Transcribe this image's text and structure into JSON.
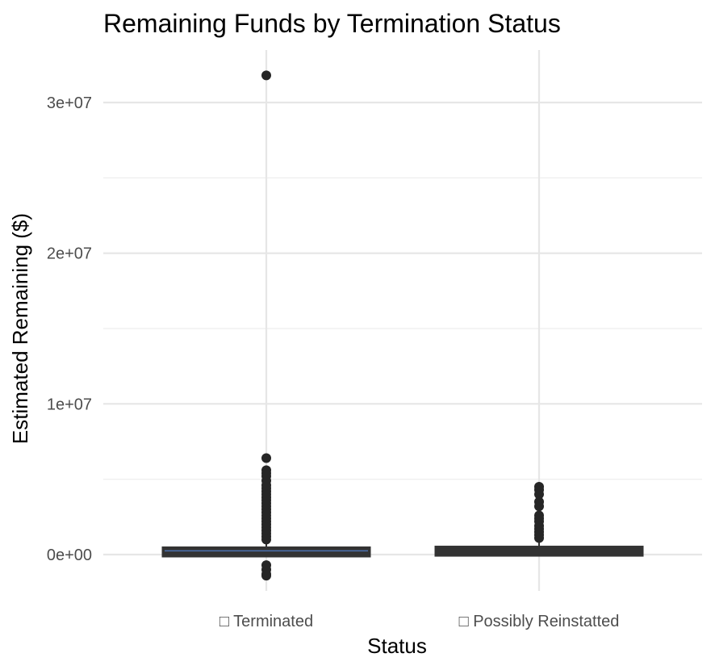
{
  "chart_data": {
    "type": "boxplot",
    "title": "Remaining Funds by Termination Status",
    "xlabel": "Status",
    "ylabel": "Estimated Remaining ($)",
    "categories": [
      "□ Terminated",
      "□ Possibly Reinstatted"
    ],
    "ylim": [
      -2000000,
      32500000
    ],
    "y_major_ticks": [
      0,
      10000000,
      20000000,
      30000000
    ],
    "y_tick_labels": [
      "0e+00",
      "1e+07",
      "2e+07",
      "3e+07"
    ],
    "y_minor_ticks": [
      5000000,
      15000000,
      25000000
    ],
    "grid": true,
    "colors": {
      "box_outline": "#333333",
      "box_fill": "#cfcfcf",
      "median": "#4c72b0",
      "outlier": "#262626",
      "grid": "#e6e6e6"
    },
    "series": [
      {
        "name": "□ Terminated",
        "q1": 0,
        "median": 250000,
        "q3": 350000,
        "whisker_low": -100000,
        "whisker_high": 800000,
        "outliers": [
          31800000,
          6400000,
          5600000,
          5400000,
          5200000,
          4900000,
          4600000,
          4400000,
          4200000,
          4000000,
          3800000,
          3600000,
          3400000,
          3200000,
          3000000,
          2800000,
          2600000,
          2400000,
          2200000,
          2000000,
          1800000,
          1600000,
          1400000,
          1200000,
          1000000,
          -700000,
          -1000000,
          -1300000,
          -1400000
        ]
      },
      {
        "name": "□ Possibly Reinstatted",
        "q1": 50000,
        "median": 250000,
        "q3": 400000,
        "whisker_low": 0,
        "whisker_high": 900000,
        "outliers": [
          4500000,
          4300000,
          4000000,
          3500000,
          3200000,
          2600000,
          2400000,
          2200000,
          1900000,
          1700000,
          1500000,
          1300000,
          1100000
        ]
      }
    ]
  }
}
